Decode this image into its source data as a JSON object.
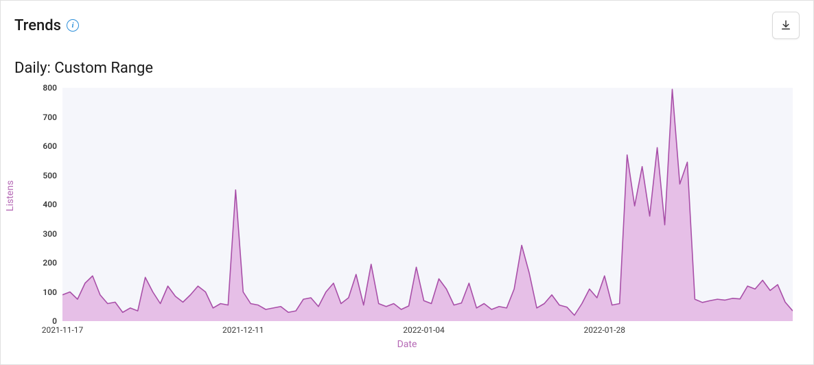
{
  "header": {
    "title": "Trends",
    "info_tooltip": "i"
  },
  "subtitle": "Daily: Custom Range",
  "chart": {
    "type": "area",
    "ylabel": "Listens",
    "xlabel": "Date",
    "background_color": "#f5f6fb",
    "line_color": "#a84fa8",
    "fill_color": "#e3b5e3",
    "fill_opacity": 0.85,
    "line_width": 1.6,
    "ylim": [
      0,
      800
    ],
    "yticks": [
      0,
      100,
      200,
      300,
      400,
      500,
      600,
      700,
      800
    ],
    "xticks": [
      {
        "index": 0,
        "label": "2021-11-17"
      },
      {
        "index": 24,
        "label": "2021-12-11"
      },
      {
        "index": 48,
        "label": "2022-01-04"
      },
      {
        "index": 72,
        "label": "2022-01-28"
      }
    ],
    "values": [
      90,
      100,
      75,
      130,
      155,
      90,
      60,
      65,
      30,
      45,
      35,
      150,
      100,
      60,
      120,
      85,
      65,
      90,
      120,
      100,
      45,
      60,
      55,
      450,
      100,
      60,
      55,
      40,
      45,
      50,
      30,
      35,
      75,
      80,
      50,
      100,
      130,
      60,
      80,
      160,
      55,
      195,
      60,
      50,
      60,
      40,
      52,
      185,
      70,
      60,
      145,
      110,
      55,
      62,
      130,
      45,
      60,
      40,
      50,
      45,
      110,
      260,
      165,
      45,
      60,
      90,
      55,
      48,
      20,
      60,
      110,
      80,
      155,
      55,
      60,
      570,
      395,
      530,
      360,
      595,
      330,
      795,
      470,
      545,
      75,
      64,
      70,
      75,
      72,
      78,
      76,
      120,
      110,
      140,
      105,
      125,
      65,
      35
    ],
    "tick_font_size": 12,
    "tick_font_weight": "600",
    "tick_color": "#3a3a3a",
    "axis_label_color": "#b569b5",
    "axis_label_fontsize": 14
  },
  "actions": {
    "download_label": "Download"
  }
}
